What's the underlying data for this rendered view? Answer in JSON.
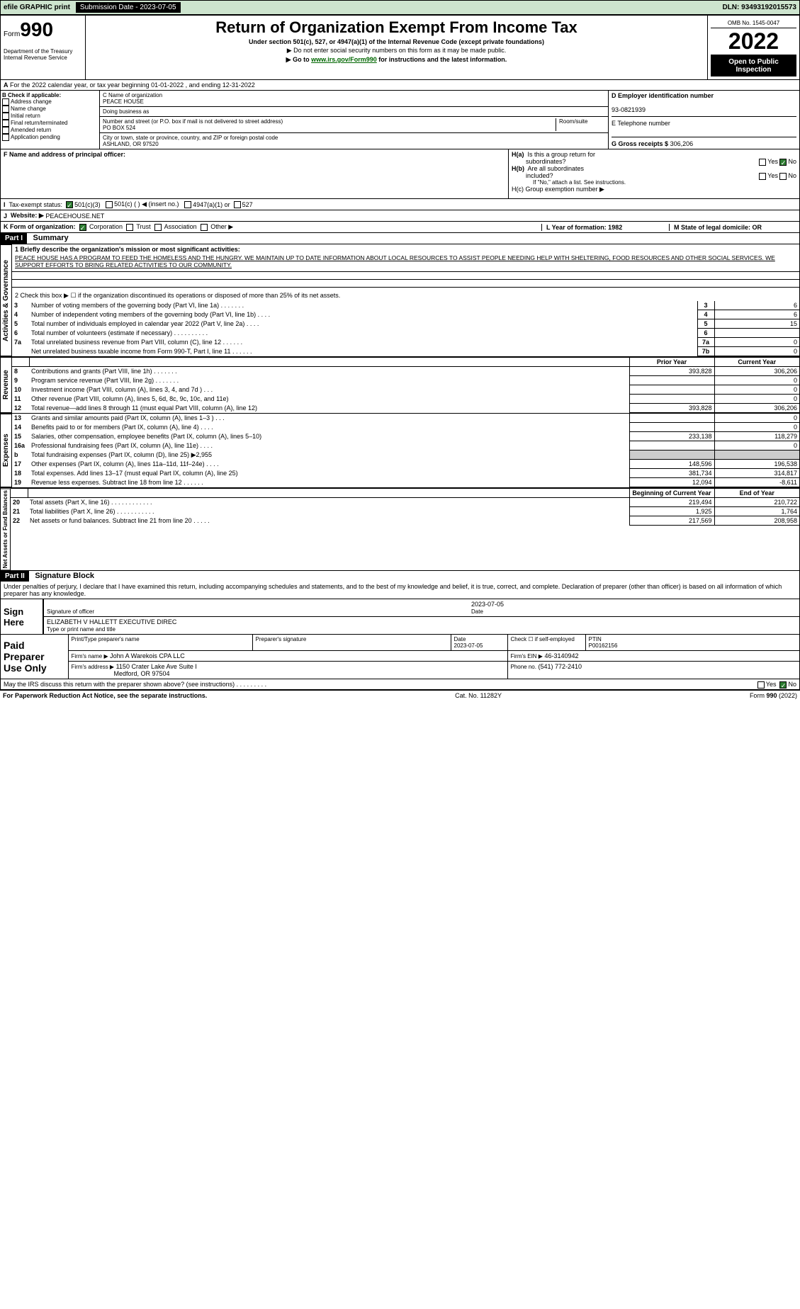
{
  "topbar": {
    "efile": "efile GRAPHIC print",
    "submission": "Submission Date - 2023-07-05",
    "dln": "DLN: 93493192015573"
  },
  "formhead": {
    "form_prefix": "Form",
    "form_no": "990",
    "dept": "Department of the Treasury\nInternal Revenue Service",
    "title": "Return of Organization Exempt From Income Tax",
    "sub": "Under section 501(c), 527, or 4947(a)(1) of the Internal Revenue Code (except private foundations)",
    "note": "▶ Do not enter social security numbers on this form as it may be made public.",
    "link_pre": "▶ Go to ",
    "link_url": "www.irs.gov/Form990",
    "link_post": " for instructions and the latest information.",
    "omb": "OMB No. 1545-0047",
    "year": "2022",
    "open": "Open to Public Inspection"
  },
  "calyear": "For the 2022 calendar year, or tax year beginning 01-01-2022    , and ending 12-31-2022",
  "blockB": {
    "header": "B Check if applicable:",
    "items": [
      "Address change",
      "Name change",
      "Initial return",
      "Final return/terminated",
      "Amended return",
      "Application pending"
    ]
  },
  "blockC": {
    "label_name": "C Name of organization",
    "name": "PEACE HOUSE",
    "dba_label": "Doing business as",
    "addr_label": "Number and street (or P.O. box if mail is not delivered to street address)",
    "room_label": "Room/suite",
    "addr": "PO BOX 524",
    "city_label": "City or town, state or province, country, and ZIP or foreign postal code",
    "city": "ASHLAND, OR  97520"
  },
  "blockD": {
    "label": "D Employer identification number",
    "value": "93-0821939",
    "e_label": "E Telephone number",
    "g_label": "G Gross receipts $",
    "g_value": "306,206"
  },
  "blockF": {
    "label": "F  Name and address of principal officer:"
  },
  "blockH": {
    "ha": "H(a)  Is this a group return for subordinates?",
    "hb": "H(b)  Are all subordinates included?",
    "hb_note": "If \"No,\" attach a list. See instructions.",
    "hc": "H(c)  Group exemption number ▶",
    "yes": "Yes",
    "no": "No"
  },
  "taxexempt": {
    "label": "Tax-exempt status:",
    "o1": "501(c)(3)",
    "o2": "501(c) (  ) ◀ (insert no.)",
    "o3": "4947(a)(1) or",
    "o4": "527"
  },
  "website": {
    "label": "Website: ▶",
    "value": "PEACEHOUSE.NET"
  },
  "Krow": {
    "label": "K Form of organization:",
    "o1": "Corporation",
    "o2": "Trust",
    "o3": "Association",
    "o4": "Other ▶"
  },
  "Lrow": {
    "l": "L Year of formation: 1982",
    "m": "M State of legal domicile: OR"
  },
  "partI": {
    "bar": "Part I",
    "title": "Summary",
    "q1_label": "1  Briefly describe the organization's mission or most significant activities:",
    "q1": "PEACE HOUSE HAS A PROGRAM TO FEED THE HOMELESS AND THE HUNGRY. WE MAINTAIN UP TO DATE INFORMATION ABOUT LOCAL RESOURCES TO ASSIST PEOPLE NEEDING HELP WITH SHELTERING, FOOD RESOURCES AND OTHER SOCIAL SERVICES. WE SUPPORT EFFORTS TO BRING RELATED ACTIVITIES TO OUR COMMUNITY.",
    "q2": "2    Check this box ▶ ☐  if the organization discontinued its operations or disposed of more than 25% of its net assets.",
    "side_ag": "Activities & Governance",
    "side_rev": "Revenue",
    "side_exp": "Expenses",
    "side_net": "Net Assets or Fund Balances",
    "rows_gov": [
      {
        "n": "3",
        "t": "Number of voting members of the governing body (Part VI, line 1a)  .   .   .   .   .   .   .",
        "b": "3",
        "v": "6"
      },
      {
        "n": "4",
        "t": "Number of independent voting members of the governing body (Part VI, line 1b)  .   .   .   .",
        "b": "4",
        "v": "6"
      },
      {
        "n": "5",
        "t": "Total number of individuals employed in calendar year 2022 (Part V, line 2a)  .   .   .   .",
        "b": "5",
        "v": "15"
      },
      {
        "n": "6",
        "t": "Total number of volunteers (estimate if necessary)   .   .   .   .   .   .   .   .   .   .",
        "b": "6",
        "v": ""
      },
      {
        "n": "7a",
        "t": "Total unrelated business revenue from Part VIII, column (C), line 12   .   .   .   .   .   .",
        "b": "7a",
        "v": "0"
      },
      {
        "n": "",
        "t": "Net unrelated business taxable income from Form 990-T, Part I, line 11   .   .   .   .   .   .",
        "b": "7b",
        "v": "0"
      }
    ],
    "hdr_prior": "Prior Year",
    "hdr_curr": "Current Year",
    "rows_rev": [
      {
        "n": "8",
        "t": "Contributions and grants (Part VIII, line 1h)   .   .   .   .   .   .   .",
        "p": "393,828",
        "c": "306,206"
      },
      {
        "n": "9",
        "t": "Program service revenue (Part VIII, line 2g)   .   .   .   .   .   .   .",
        "p": "",
        "c": "0"
      },
      {
        "n": "10",
        "t": "Investment income (Part VIII, column (A), lines 3, 4, and 7d )   .   .   .",
        "p": "",
        "c": "0"
      },
      {
        "n": "11",
        "t": "Other revenue (Part VIII, column (A), lines 5, 6d, 8c, 9c, 10c, and 11e)",
        "p": "",
        "c": "0"
      },
      {
        "n": "12",
        "t": "Total revenue—add lines 8 through 11 (must equal Part VIII, column (A), line 12)",
        "p": "393,828",
        "c": "306,206"
      }
    ],
    "rows_exp": [
      {
        "n": "13",
        "t": "Grants and similar amounts paid (Part IX, column (A), lines 1–3 )  .   .   .",
        "p": "",
        "c": "0"
      },
      {
        "n": "14",
        "t": "Benefits paid to or for members (Part IX, column (A), line 4)  .   .   .   .",
        "p": "",
        "c": "0"
      },
      {
        "n": "15",
        "t": "Salaries, other compensation, employee benefits (Part IX, column (A), lines 5–10)",
        "p": "233,138",
        "c": "118,279"
      },
      {
        "n": "16a",
        "t": "Professional fundraising fees (Part IX, column (A), line 11e)  .   .   .   .",
        "p": "",
        "c": "0"
      },
      {
        "n": "b",
        "t": "Total fundraising expenses (Part IX, column (D), line 25) ▶2,955",
        "p": "gray",
        "c": "gray"
      },
      {
        "n": "17",
        "t": "Other expenses (Part IX, column (A), lines 11a–11d, 11f–24e)  .   .   .   .",
        "p": "148,596",
        "c": "196,538"
      },
      {
        "n": "18",
        "t": "Total expenses. Add lines 13–17 (must equal Part IX, column (A), line 25)",
        "p": "381,734",
        "c": "314,817"
      },
      {
        "n": "19",
        "t": "Revenue less expenses. Subtract line 18 from line 12  .   .   .   .   .   .",
        "p": "12,094",
        "c": "-8,611"
      }
    ],
    "hdr_beg": "Beginning of Current Year",
    "hdr_end": "End of Year",
    "rows_net": [
      {
        "n": "20",
        "t": "Total assets (Part X, line 16)  .   .   .   .   .   .   .   .   .   .   .   .",
        "p": "219,494",
        "c": "210,722"
      },
      {
        "n": "21",
        "t": "Total liabilities (Part X, line 26)  .   .   .   .   .   .   .   .   .   .   .",
        "p": "1,925",
        "c": "1,764"
      },
      {
        "n": "22",
        "t": "Net assets or fund balances. Subtract line 21 from line 20  .   .   .   .   .",
        "p": "217,569",
        "c": "208,958"
      }
    ]
  },
  "partII": {
    "bar": "Part II",
    "title": "Signature Block",
    "decl": "Under penalties of perjury, I declare that I have examined this return, including accompanying schedules and statements, and to the best of my knowledge and belief, it is true, correct, and complete. Declaration of preparer (other than officer) is based on all information of which preparer has any knowledge.",
    "sign_here": "Sign Here",
    "sig_officer": "Signature of officer",
    "sig_date": "2023-07-05",
    "date_label": "Date",
    "officer_name": "ELIZABETH V HALLETT  EXECUTIVE DIREC",
    "type_label": "Type or print name and title",
    "paid": "Paid Preparer Use Only",
    "prep_name_label": "Print/Type preparer's name",
    "prep_sig_label": "Preparer's signature",
    "prep_date": "2023-07-05",
    "check_label": "Check ☐ if self-employed",
    "ptin_label": "PTIN",
    "ptin": "P00162156",
    "firm_name_label": "Firm's name    ▶",
    "firm_name": "John A Warekois CPA LLC",
    "firm_ein_label": "Firm's EIN ▶",
    "firm_ein": "46-3140942",
    "firm_addr_label": "Firm's address ▶",
    "firm_addr": "1150 Crater Lake Ave Suite I",
    "firm_city": "Medford, OR  97504",
    "phone_label": "Phone no.",
    "phone": "(541) 772-2410",
    "discuss": "May the IRS discuss this return with the preparer shown above? (see instructions)   .   .   .   .   .   .   .   .   ."
  },
  "footer": {
    "l": "For Paperwork Reduction Act Notice, see the separate instructions.",
    "m": "Cat. No. 11282Y",
    "r": "Form 990 (2022)"
  }
}
